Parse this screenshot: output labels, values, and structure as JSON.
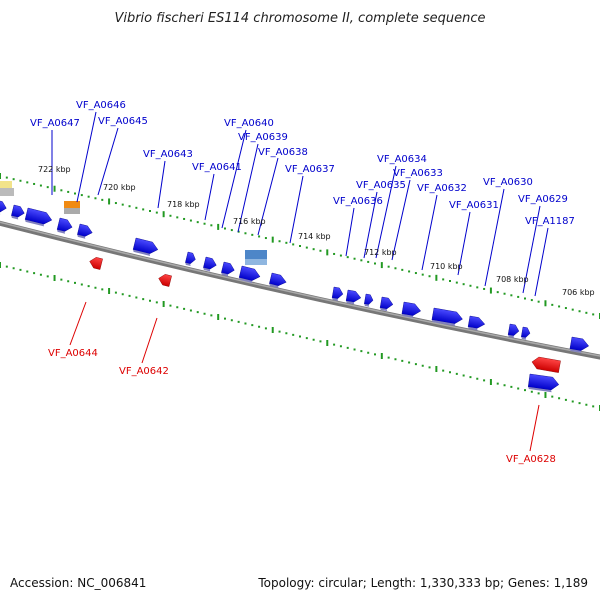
{
  "title": "Vibrio fischeri ES114 chromosome II, complete sequence",
  "footer": {
    "accession": "Accession: NC_006841",
    "summary": "Topology: circular; Length: 1,330,333 bp; Genes: 1,189"
  },
  "colors": {
    "forward_gene": "#1a1aff",
    "reverse_gene": "#ee1111",
    "forward_label": "#0000cc",
    "reverse_label": "#dd0000",
    "ticks": "#229922",
    "backbone": "#888888"
  },
  "kbp_labels": [
    "722 kbp",
    "720 kbp",
    "718 kbp",
    "716 kbp",
    "714 kbp",
    "712 kbp",
    "710 kbp",
    "708 kbp",
    "706 kbp"
  ],
  "forward_labels": [
    "VF_A0647",
    "VF_A0646",
    "VF_A0645",
    "VF_A0643",
    "VF_A0640",
    "VF_A0639",
    "VF_A0641",
    "VF_A0638",
    "VF_A0637",
    "VF_A0634",
    "VF_A0633",
    "VF_A0635",
    "VF_A0632",
    "VF_A0636",
    "VF_A0630",
    "VF_A0629",
    "VF_A0631",
    "VF_A1187"
  ],
  "reverse_labels": [
    "VF_A0644",
    "VF_A0642",
    "VF_A0628"
  ]
}
